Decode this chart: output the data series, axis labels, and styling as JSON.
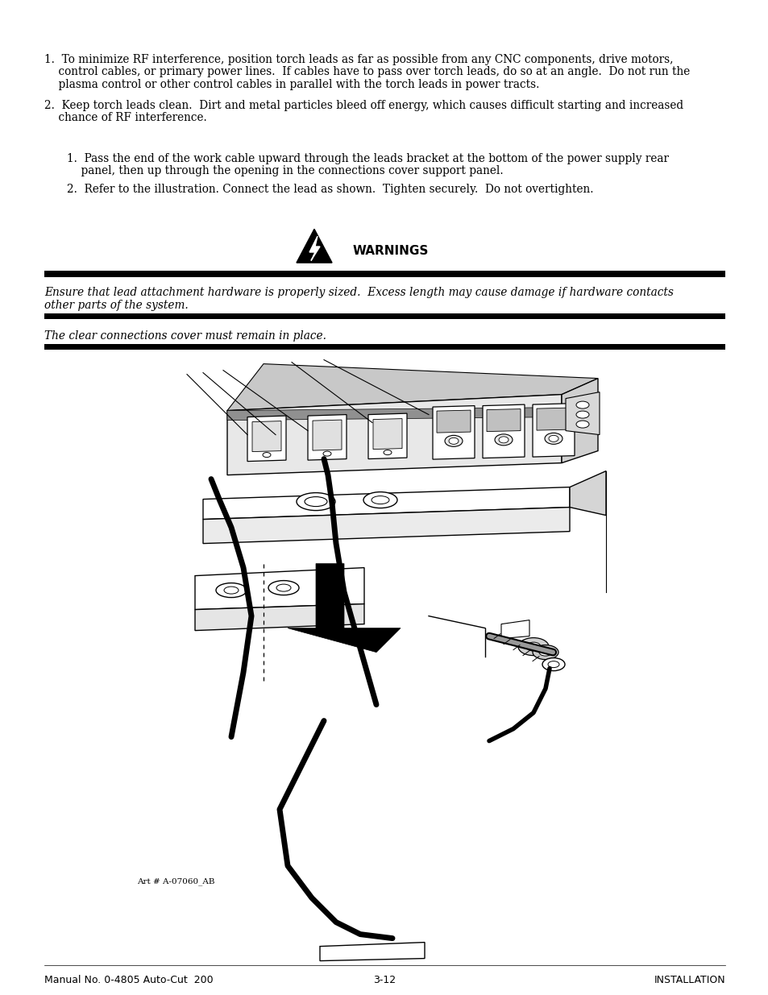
{
  "bg_color": "#ffffff",
  "text_color": "#000000",
  "para1_lines": [
    "1.  To minimize RF interference, position torch leads as far as possible from any CNC components, drive motors,",
    "    control cables, or primary power lines.  If cables have to pass over torch leads, do so at an angle.  Do not run the",
    "    plasma control or other control cables in parallel with the torch leads in power tracts."
  ],
  "para2_lines": [
    "2.  Keep torch leads clean.  Dirt and metal particles bleed off energy, which causes difficult starting and increased",
    "    chance of RF interference."
  ],
  "sub_para1_lines": [
    "1.  Pass the end of the work cable upward through the leads bracket at the bottom of the power supply rear",
    "    panel, then up through the opening in the connections cover support panel."
  ],
  "sub_para2_lines": [
    "2.  Refer to the illustration. Connect the lead as shown.  Tighten securely.  Do not overtighten."
  ],
  "warnings_label": "WARNINGS",
  "warning1_lines": [
    "Ensure that lead attachment hardware is properly sized.  Excess length may cause damage if hardware contacts",
    "other parts of the system."
  ],
  "warning2_lines": [
    "The clear connections cover must remain in place."
  ],
  "footer_left": "Manual No. 0-4805 Auto-Cut  200",
  "footer_center": "3-12",
  "footer_right": "INSTALLATION",
  "image_caption": "Art # A-07060_AB"
}
